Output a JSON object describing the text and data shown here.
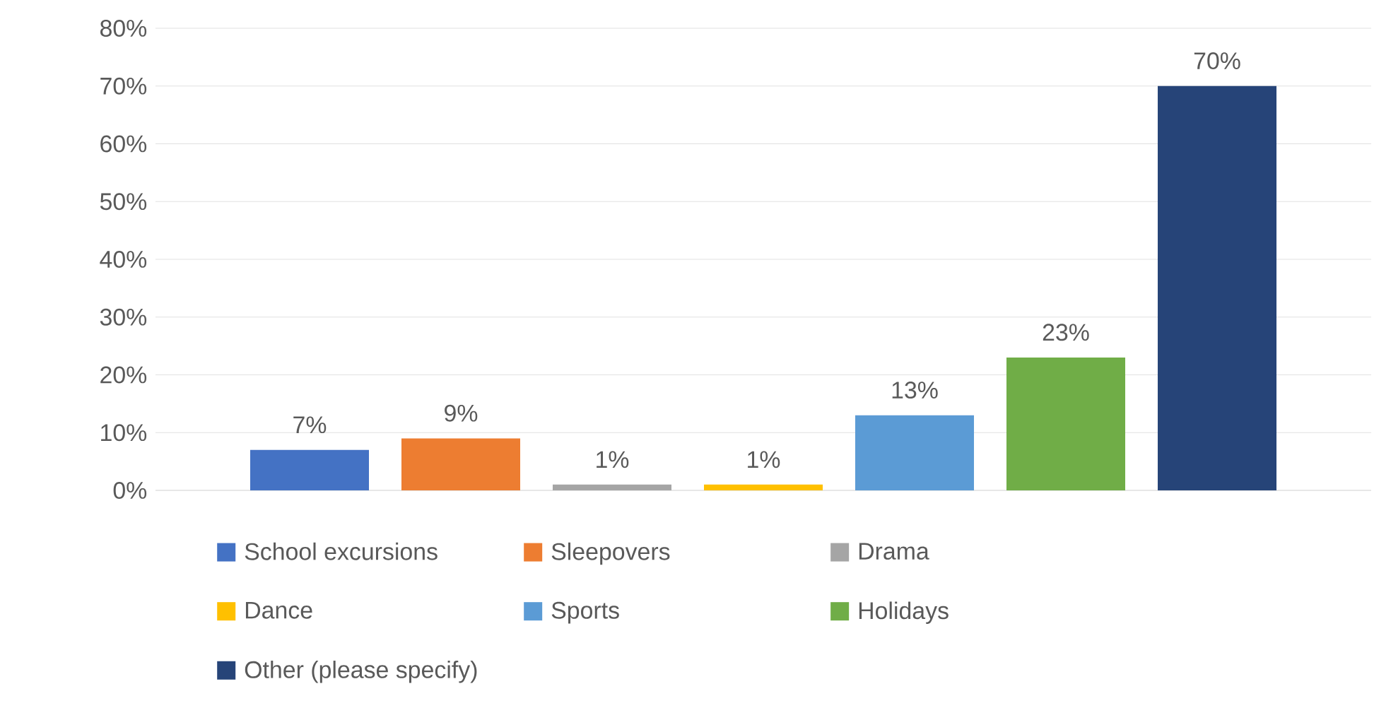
{
  "chart_data": {
    "type": "bar",
    "categories": [
      null
    ],
    "series": [
      {
        "name": "School excursions",
        "color": "#4472c4",
        "values": [
          7
        ],
        "value_labels": [
          "7%"
        ]
      },
      {
        "name": "Sleepovers",
        "color": "#ed7d31",
        "values": [
          9
        ],
        "value_labels": [
          "9%"
        ]
      },
      {
        "name": "Drama",
        "color": "#a5a5a5",
        "values": [
          1
        ],
        "value_labels": [
          "1%"
        ]
      },
      {
        "name": "Dance",
        "color": "#ffc000",
        "values": [
          1
        ],
        "value_labels": [
          "1%"
        ]
      },
      {
        "name": "Sports",
        "color": "#5b9bd5",
        "values": [
          13
        ],
        "value_labels": [
          "13%"
        ]
      },
      {
        "name": "Holidays",
        "color": "#70ad47",
        "values": [
          23
        ],
        "value_labels": [
          "23%"
        ]
      },
      {
        "name": "Other (please specify)",
        "color": "#264478",
        "values": [
          70
        ],
        "value_labels": [
          "70%"
        ]
      }
    ],
    "ylim": [
      0,
      80
    ],
    "yticks": [
      {
        "value": 0,
        "label": "0%"
      },
      {
        "value": 10,
        "label": "10%"
      },
      {
        "value": 20,
        "label": "20%"
      },
      {
        "value": 30,
        "label": "30%"
      },
      {
        "value": 40,
        "label": "40%"
      },
      {
        "value": 50,
        "label": "50%"
      },
      {
        "value": 60,
        "label": "60%"
      },
      {
        "value": 70,
        "label": "70%"
      },
      {
        "value": 80,
        "label": "80%"
      }
    ],
    "grid": "y",
    "legend": "bottom"
  }
}
